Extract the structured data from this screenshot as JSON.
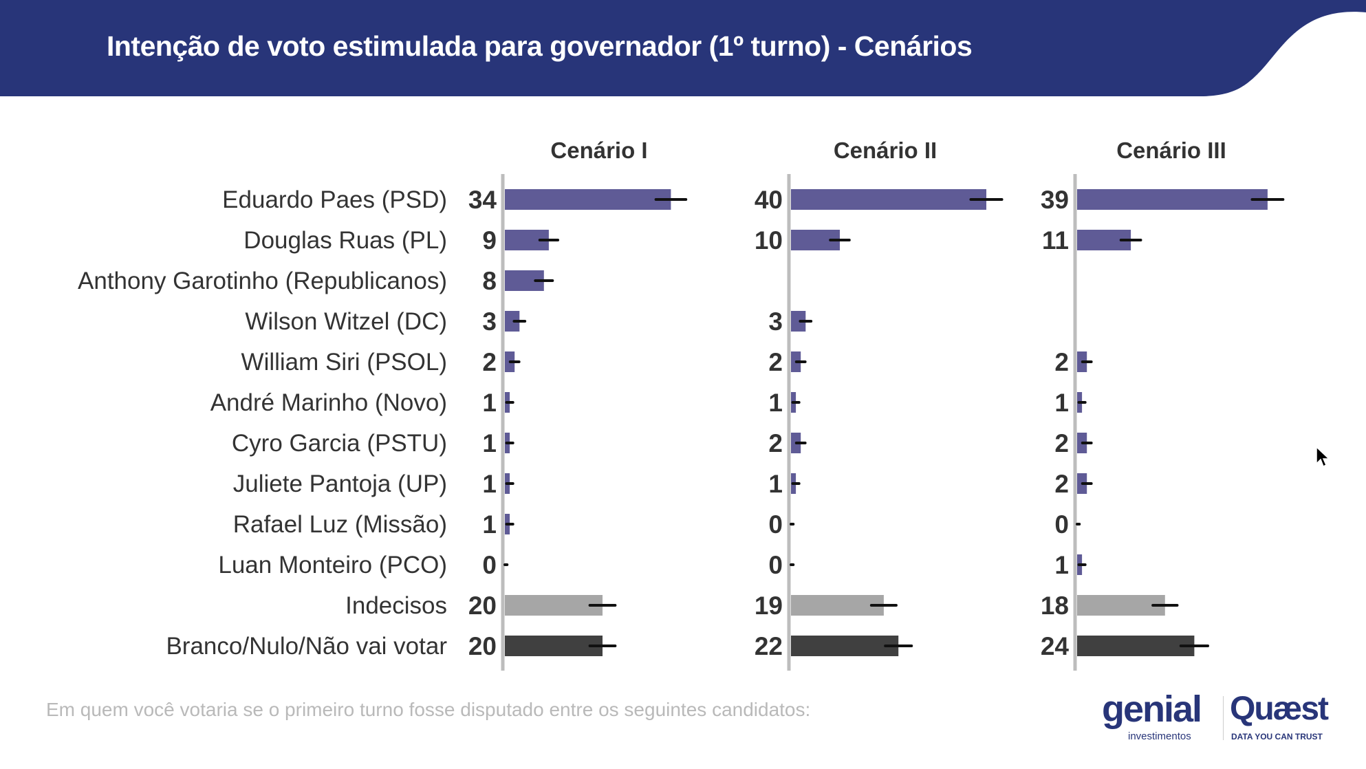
{
  "title": "Intenção de voto estimulada para governador (1º turno) - Cenários",
  "footnote": "Em quem você votaria se o primeiro turno fosse disputado entre os seguintes candidatos:",
  "logo": {
    "brand1": "genial",
    "brand1_sub": "investimentos",
    "brand2": "Quæst",
    "brand2_sub": "DATA YOU CAN TRUST"
  },
  "colors": {
    "header": "#283579",
    "candidate": "#5f5b96",
    "undecided": "#a6a6a6",
    "blank_null": "#404040",
    "axis": "#bdbdbd"
  },
  "chart_data": {
    "type": "bar",
    "orientation": "horizontal",
    "title": "Intenção de voto estimulada para governador (1º turno) - Cenários",
    "categories": [
      "Eduardo Paes (PSD)",
      "Douglas Ruas (PL)",
      "Anthony Garotinho (Republicanos)",
      "Wilson Witzel (DC)",
      "William Siri (PSOL)",
      "André Marinho (Novo)",
      "Cyro Garcia (PSTU)",
      "Juliete Pantoja (UP)",
      "Rafael Luz (Missão)",
      "Luan Monteiro (PCO)",
      "Indecisos",
      "Branco/Nulo/Não vai votar"
    ],
    "category_types": [
      "candidate",
      "candidate",
      "candidate",
      "candidate",
      "candidate",
      "candidate",
      "candidate",
      "candidate",
      "candidate",
      "candidate",
      "undecided",
      "blank_null"
    ],
    "series": [
      {
        "name": "Cenário I",
        "values": [
          34,
          9,
          8,
          3,
          2,
          1,
          1,
          1,
          1,
          0,
          20,
          20
        ]
      },
      {
        "name": "Cenário II",
        "values": [
          40,
          10,
          null,
          3,
          2,
          1,
          2,
          1,
          0,
          0,
          19,
          22
        ]
      },
      {
        "name": "Cenário III",
        "values": [
          39,
          11,
          null,
          null,
          2,
          1,
          2,
          2,
          0,
          1,
          18,
          24
        ]
      }
    ],
    "error_bars": true,
    "unit": "%"
  }
}
